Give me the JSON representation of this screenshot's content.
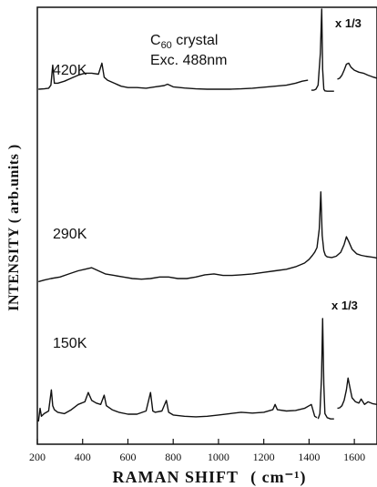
{
  "chart_data": {
    "type": "line",
    "title": "C60 crystal",
    "subtitle": "Exc. 488nm",
    "xlabel": "RAMAN SHIFT",
    "xlabel_unit": "( cm⁻¹)",
    "ylabel": "INTENSITY ( arb.units )",
    "xlim": [
      200,
      1700
    ],
    "x_ticks": [
      "200",
      "400",
      "600",
      "800",
      "1000",
      "1200",
      "1400",
      "1600"
    ],
    "yticks_shown": false,
    "grid": false,
    "legend": "none",
    "scale_annotations": [
      {
        "text": "x  1/3",
        "applies_to": "420K",
        "x_from": 1500
      },
      {
        "text": "x  1/3",
        "applies_to": "150K",
        "x_from": 1500
      }
    ],
    "series": [
      {
        "name": "420K",
        "segments": [
          {
            "x": [
              205,
              230,
              250,
              260,
              268,
              275,
              290,
              320,
              350,
              380,
              410,
              440,
              470,
              485,
              495,
              510,
              540,
              570,
              600,
              640,
              680,
              720,
              760,
              775,
              800,
              850,
              900,
              950,
              1000,
              1050,
              1100,
              1150,
              1200,
              1250,
              1300,
              1340,
              1370,
              1395
            ],
            "y": [
              1.0,
              1.02,
              1.05,
              1.2,
              2.2,
              1.3,
              1.3,
              1.4,
              1.55,
              1.7,
              1.8,
              1.8,
              1.75,
              2.3,
              1.6,
              1.45,
              1.3,
              1.15,
              1.08,
              1.08,
              1.05,
              1.12,
              1.18,
              1.25,
              1.12,
              1.06,
              1.02,
              1.0,
              1.0,
              1.0,
              1.02,
              1.05,
              1.1,
              1.15,
              1.2,
              1.3,
              1.4,
              1.45
            ]
          },
          {
            "x": [
              1410,
              1420,
              1430,
              1440,
              1450,
              1456,
              1460,
              1465,
              1470,
              1480,
              1495,
              1510
            ],
            "y": [
              0.95,
              0.95,
              1.0,
              1.2,
              2.8,
              5.0,
              2.0,
              1.0,
              0.92,
              0.9,
              0.9,
              0.9
            ]
          },
          {
            "x": [
              1525,
              1535,
              1545,
              1555,
              1565,
              1575,
              1585,
              1600,
              1620,
              1640,
              1660,
              1680,
              1700
            ],
            "y": [
              1.5,
              1.55,
              1.7,
              1.95,
              2.25,
              2.3,
              2.1,
              1.95,
              1.85,
              1.8,
              1.7,
              1.62,
              1.55
            ]
          }
        ]
      },
      {
        "name": "290K",
        "segments": [
          {
            "x": [
              205,
              230,
              260,
              300,
              340,
              380,
              410,
              440,
              470,
              500,
              540,
              580,
              620,
              660,
              700,
              740,
              780,
              820,
              860,
              900,
              940,
              980,
              1020,
              1060,
              1100,
              1150,
              1200,
              1250,
              1300,
              1340,
              1380,
              1400,
              1415,
              1425,
              1435,
              1445,
              1452,
              1458,
              1465,
              1472,
              1480,
              1500,
              1520,
              1540,
              1555,
              1565,
              1575,
              1590,
              1610,
              1630,
              1650,
              1670,
              1690,
              1700
            ],
            "y": [
              0.9,
              0.95,
              1.0,
              1.05,
              1.15,
              1.25,
              1.3,
              1.35,
              1.25,
              1.15,
              1.1,
              1.05,
              1.0,
              0.98,
              1.0,
              1.05,
              1.05,
              1.0,
              1.0,
              1.05,
              1.12,
              1.15,
              1.1,
              1.1,
              1.12,
              1.15,
              1.2,
              1.25,
              1.3,
              1.38,
              1.5,
              1.62,
              1.75,
              1.85,
              2.0,
              2.6,
              3.8,
              2.4,
              1.9,
              1.75,
              1.7,
              1.68,
              1.72,
              1.85,
              2.1,
              2.35,
              2.2,
              1.95,
              1.8,
              1.75,
              1.72,
              1.7,
              1.68,
              1.66
            ]
          }
        ]
      },
      {
        "name": "150K",
        "segments": [
          {
            "x": [
              205,
              212,
              218,
              230,
              250,
              262,
              268,
              275,
              290,
              320,
              350,
              380,
              410,
              425,
              440,
              460,
              480,
              495,
              505,
              530,
              560,
              600,
              640,
              680,
              700,
              710,
              720,
              750,
              770,
              780,
              800,
              850,
              900,
              950,
              1000,
              1050,
              1100,
              1150,
              1200,
              1240,
              1250,
              1260,
              1300,
              1340,
              1380,
              1410,
              1425,
              1435
            ],
            "y": [
              1.1,
              1.6,
              1.3,
              1.4,
              1.5,
              2.3,
              1.7,
              1.55,
              1.45,
              1.4,
              1.55,
              1.75,
              1.85,
              2.2,
              1.9,
              1.8,
              1.75,
              2.1,
              1.7,
              1.55,
              1.45,
              1.38,
              1.38,
              1.5,
              2.2,
              1.5,
              1.45,
              1.5,
              1.9,
              1.45,
              1.35,
              1.3,
              1.28,
              1.3,
              1.35,
              1.4,
              1.45,
              1.42,
              1.45,
              1.55,
              1.75,
              1.55,
              1.5,
              1.52,
              1.6,
              1.75,
              1.3,
              1.25
            ]
          },
          {
            "x": [
              1440,
              1448,
              1455,
              1460,
              1465,
              1470,
              1480,
              1495,
              1510
            ],
            "y": [
              1.2,
              1.4,
              2.8,
              5.0,
              2.5,
              1.4,
              1.25,
              1.2,
              1.2
            ]
          },
          {
            "x": [
              1525,
              1535,
              1545,
              1555,
              1565,
              1572,
              1580,
              1590,
              1605,
              1620,
              1630,
              1645,
              1660,
              1680,
              1700
            ],
            "y": [
              1.6,
              1.62,
              1.7,
              1.9,
              2.3,
              2.75,
              2.4,
              2.0,
              1.85,
              1.8,
              1.95,
              1.75,
              1.85,
              1.78,
              1.75
            ]
          }
        ]
      }
    ]
  }
}
